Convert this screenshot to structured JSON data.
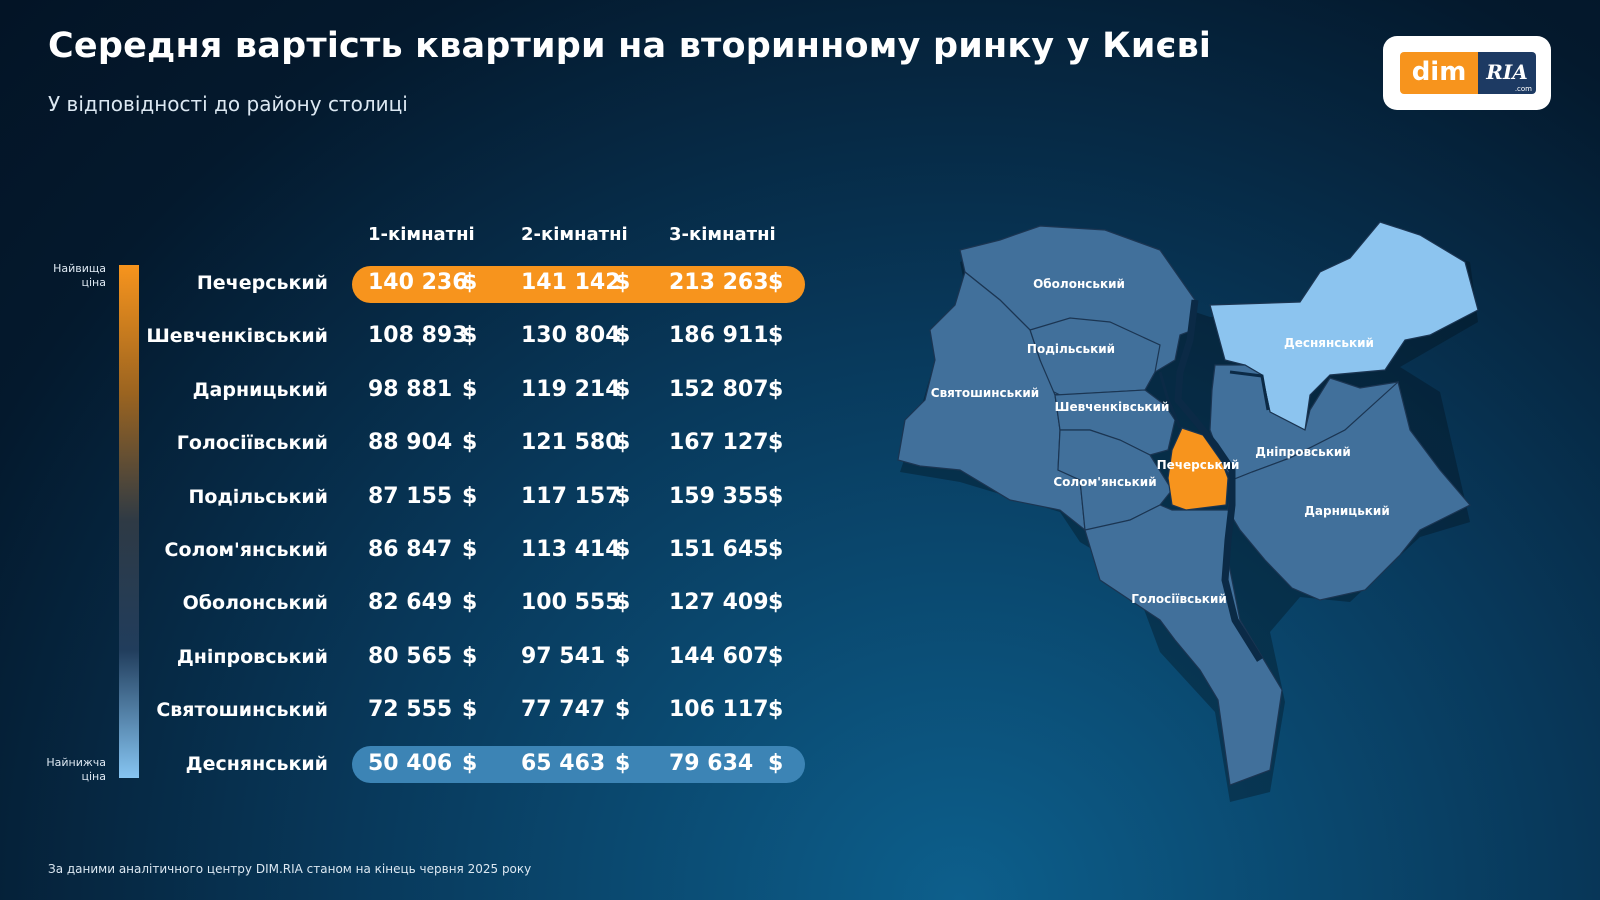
{
  "header": {
    "title": "Середня вартість квартири на вторинному ринку у Києві",
    "subtitle": "У відповідності до району столиці"
  },
  "logo": {
    "left_text": "dim",
    "right_text": "RIA",
    "right_sub": ".com"
  },
  "scale": {
    "top_label": "Найвища ціна",
    "bottom_label": "Найнижча ціна"
  },
  "table": {
    "columns": [
      "1-кімнатні",
      "2-кімнатні",
      "3-кімнатні"
    ],
    "currency": "$",
    "rows": [
      {
        "district": "Печерський",
        "prices": [
          "140 236",
          "141 142",
          "213 263"
        ]
      },
      {
        "district": "Шевченківський",
        "prices": [
          "108 893",
          "130 804",
          "186 911"
        ]
      },
      {
        "district": "Дарницький",
        "prices": [
          "98 881",
          "119 214",
          "152 807"
        ]
      },
      {
        "district": "Голосіївський",
        "prices": [
          "88 904",
          "121 580",
          "167 127"
        ]
      },
      {
        "district": "Подільський",
        "prices": [
          "87 155",
          "117 157",
          "159 355"
        ]
      },
      {
        "district": "Солом'янський",
        "prices": [
          "86 847",
          "113 414",
          "151 645"
        ]
      },
      {
        "district": "Оболонський",
        "prices": [
          "82 649",
          "100 555",
          "127 409"
        ]
      },
      {
        "district": "Дніпровський",
        "prices": [
          "80 565",
          "97 541",
          "144 607"
        ]
      },
      {
        "district": "Святошинський",
        "prices": [
          "72 555",
          "77 747",
          "106 117"
        ]
      },
      {
        "district": "Деснянський",
        "prices": [
          "50 406",
          "65 463",
          "79 634"
        ]
      }
    ]
  },
  "map": {
    "labels": {
      "obolonskyi": "Оболонський",
      "podilskyi": "Подільський",
      "sviatoshynskyi": "Святошинський",
      "shevchenkivskyi": "Шевченківський",
      "solomianskyi": "Солом'янський",
      "pecherskyi": "Печерський",
      "holosiivskyi": "Голосіївський",
      "desnianskyi": "Деснянський",
      "dniprovskyi": "Дніпровський",
      "darnytskyi": "Дарницький"
    },
    "colors": {
      "district": "#41709b",
      "highest": "#f7941d",
      "lowest": "#8cc4ef",
      "border": "#1b3552",
      "river": "#0b2a46"
    }
  },
  "footnote": "За даними аналітичного центру DIM.RIA станом на кінець червня 2025 року"
}
